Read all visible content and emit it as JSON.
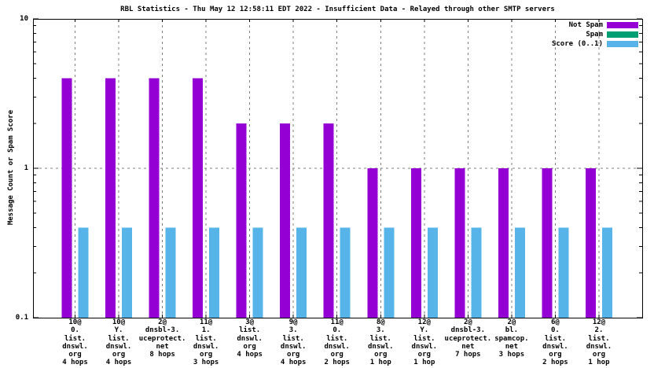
{
  "chart_data": {
    "type": "bar",
    "y_scale": "log",
    "title": "RBL Statistics - Thu May 12 12:58:11 EDT 2022 - Insufficient Data - Relayed through other SMTP servers",
    "ylabel": "Message Count or Spam Score",
    "ylim": [
      0.1,
      10
    ],
    "yticks": [
      10,
      1,
      0.1
    ],
    "ygrid": [
      1
    ],
    "grid": "vertical-dashed-at-each-category-plus-horizontal-at-1",
    "legend_position": "top-right-inside",
    "background": "#ffffff",
    "grid_color": "#808080",
    "axis_color": "#000000",
    "categories": [
      [
        "10@",
        "0.",
        "list.",
        "dnswl.",
        "org",
        "4 hops"
      ],
      [
        "10@",
        "Y.",
        "list.",
        "dnswl.",
        "org",
        "4 hops"
      ],
      [
        "2@",
        "dnsbl-3.",
        "uceprotect.",
        "net",
        "8 hops"
      ],
      [
        "11@",
        "1.",
        "list.",
        "dnswl.",
        "org",
        "3 hops"
      ],
      [
        "3@",
        "list.",
        "dnswl.",
        "org",
        "4 hops"
      ],
      [
        "9@",
        "3.",
        "list.",
        "dnswl.",
        "org",
        "4 hops"
      ],
      [
        "11@",
        "0.",
        "list.",
        "dnswl.",
        "org",
        "2 hops"
      ],
      [
        "8@",
        "3.",
        "list.",
        "dnswl.",
        "org",
        "1 hop"
      ],
      [
        "12@",
        "Y.",
        "list.",
        "dnswl.",
        "org",
        "1 hop"
      ],
      [
        "2@",
        "dnsbl-3.",
        "uceprotect.",
        "net",
        "7 hops"
      ],
      [
        "2@",
        "bl.",
        "spamcop.",
        "net",
        "3 hops"
      ],
      [
        "6@",
        "0.",
        "list.",
        "dnswl.",
        "org",
        "2 hops"
      ],
      [
        "12@",
        "2.",
        "list.",
        "dnswl.",
        "org",
        "1 hop"
      ]
    ],
    "series": [
      {
        "name": "Not Spam",
        "color": "#9400d3",
        "values": [
          4,
          4,
          4,
          4,
          2,
          2,
          2,
          1,
          1,
          1,
          1,
          1,
          1
        ]
      },
      {
        "name": "Spam",
        "color": "#009e73",
        "values": [
          0,
          0,
          0,
          0,
          0,
          0,
          0,
          0,
          0,
          0,
          0,
          0,
          0
        ]
      },
      {
        "name": "Score (0..1)",
        "color": "#56b4e9",
        "values": [
          0.4,
          0.4,
          0.4,
          0.4,
          0.4,
          0.4,
          0.4,
          0.4,
          0.4,
          0.4,
          0.4,
          0.4,
          0.4
        ]
      }
    ]
  }
}
